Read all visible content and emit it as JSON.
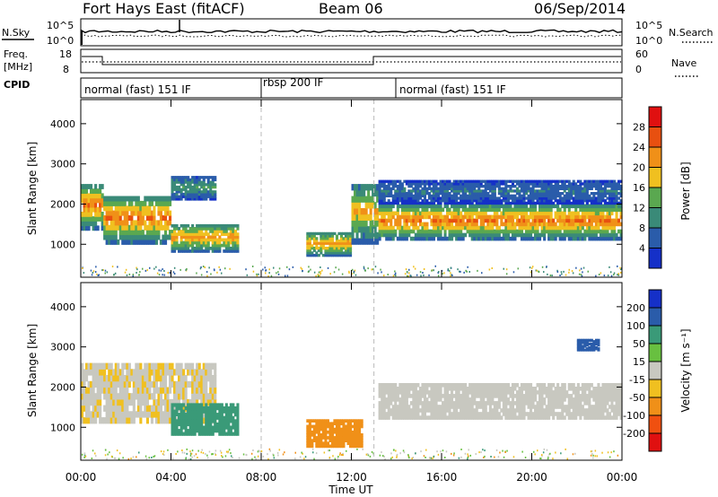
{
  "title": {
    "station": "Fort Hays East (fitACF)",
    "beam": "Beam 06",
    "date": "06/Sep/2014"
  },
  "noise_panel": {
    "left_label": "N.Sky",
    "right_label": "N.Search",
    "ticks": [
      "10^5",
      "10^0"
    ],
    "right_ticks": [
      "10^5",
      "10^0"
    ]
  },
  "freq_panel": {
    "left_label_1": "Freq.",
    "left_label_2": "[MHz]",
    "left_ticks": [
      "18",
      "8"
    ],
    "right_label": "Nave",
    "right_ticks": [
      "60",
      "0"
    ]
  },
  "cpid": {
    "label": "CPID",
    "segments": [
      {
        "name": "normal (fast) 151 IF",
        "start_hour": 0,
        "end_hour": 8
      },
      {
        "name": "rbsp 200 IF",
        "start_hour": 8,
        "end_hour": 13
      },
      {
        "name": "normal (fast) 151 IF",
        "start_hour": 13,
        "end_hour": 24
      }
    ]
  },
  "chart_data": [
    {
      "type": "heatmap",
      "title": "",
      "ylabel": "Slant Range [km]",
      "xlabel": "",
      "x_range_hours": [
        0,
        24
      ],
      "ylim": [
        180,
        4600
      ],
      "y_ticks": [
        1000,
        2000,
        3000,
        4000
      ],
      "colorbar": {
        "label": "Power [dB]",
        "ticks": [
          "4",
          "8",
          "12",
          "16",
          "20",
          "24",
          "28"
        ],
        "colors": [
          "#1530c8",
          "#2a5caa",
          "#3a8a78",
          "#5aa850",
          "#f0c020",
          "#f09018",
          "#e85010",
          "#e01010"
        ]
      },
      "echo_bands": [
        {
          "t0": 0.0,
          "t1": 1.0,
          "r_lo": 1350,
          "r_hi": 2500,
          "peak": 24
        },
        {
          "t0": 1.0,
          "t1": 4.0,
          "r_lo": 1000,
          "r_hi": 2200,
          "peak": 24
        },
        {
          "t0": 4.0,
          "t1": 6.0,
          "r_lo": 2100,
          "r_hi": 2700,
          "peak": 12
        },
        {
          "t0": 4.0,
          "t1": 7.0,
          "r_lo": 800,
          "r_hi": 1500,
          "peak": 22
        },
        {
          "t0": 10.0,
          "t1": 12.0,
          "r_lo": 700,
          "r_hi": 1300,
          "peak": 22
        },
        {
          "t0": 12.0,
          "t1": 13.2,
          "r_lo": 1000,
          "r_hi": 2500,
          "peak": 20
        },
        {
          "t0": 13.2,
          "t1": 24.0,
          "r_lo": 1100,
          "r_hi": 2000,
          "peak": 24
        },
        {
          "t0": 13.2,
          "t1": 24.0,
          "r_lo": 2000,
          "r_hi": 2600,
          "peak": 8
        }
      ]
    },
    {
      "type": "heatmap",
      "title": "",
      "ylabel": "Slant Range [km]",
      "xlabel": "Time UT",
      "x_ticks": [
        "00:00",
        "04:00",
        "08:00",
        "12:00",
        "16:00",
        "20:00",
        "00:00"
      ],
      "x_range_hours": [
        0,
        24
      ],
      "ylim": [
        180,
        4600
      ],
      "y_ticks": [
        1000,
        2000,
        3000,
        4000
      ],
      "colorbar": {
        "label": "Velocity [m s⁻¹]",
        "ticks": [
          "-200",
          "-100",
          "-50",
          "-15",
          "15",
          "50",
          "100",
          "200"
        ],
        "colors": [
          "#e01010",
          "#f05010",
          "#f09018",
          "#f0c020",
          "#c8c8c0",
          "#68c040",
          "#3a9a78",
          "#2a5caa",
          "#1530c8"
        ]
      },
      "echo_bands": [
        {
          "t0": 0.0,
          "t1": 6.0,
          "r_lo": 1100,
          "r_hi": 2600,
          "vel": -10
        },
        {
          "t0": 4.0,
          "t1": 7.0,
          "r_lo": 800,
          "r_hi": 1600,
          "vel": 60
        },
        {
          "t0": 10.0,
          "t1": 12.5,
          "r_lo": 500,
          "r_hi": 1200,
          "vel": -60
        },
        {
          "t0": 13.2,
          "t1": 24.0,
          "r_lo": 1200,
          "r_hi": 2100,
          "vel": 0
        },
        {
          "t0": 22.0,
          "t1": 23.0,
          "r_lo": 2900,
          "r_hi": 3200,
          "vel": 180
        }
      ]
    }
  ]
}
